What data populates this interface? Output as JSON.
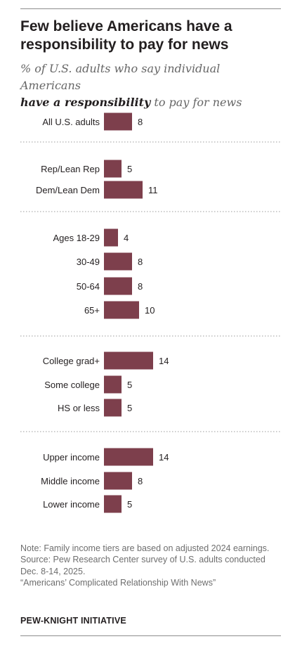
{
  "title": "Few believe Americans have a responsibility to pay for news",
  "subtitle": {
    "before": "% of U.S. adults who say individual Americans",
    "emphasis": "have a responsibility",
    "after": " to pay for news"
  },
  "chart_data": {
    "type": "bar",
    "orientation": "horizontal",
    "unit": "%",
    "bar_color": "#7d3f4c",
    "groups": [
      {
        "rows": [
          {
            "label": "All U.S. adults",
            "value": 8
          }
        ]
      },
      {
        "rows": [
          {
            "label": "Rep/Lean Rep",
            "value": 5
          },
          {
            "label": "Dem/Lean Dem",
            "value": 11
          }
        ]
      },
      {
        "rows": [
          {
            "label": "Ages 18-29",
            "value": 4
          },
          {
            "label": "30-49",
            "value": 8
          },
          {
            "label": "50-64",
            "value": 8
          },
          {
            "label": "65+",
            "value": 10
          }
        ]
      },
      {
        "rows": [
          {
            "label": "College grad+",
            "value": 14
          },
          {
            "label": "Some college",
            "value": 5
          },
          {
            "label": "HS or less",
            "value": 5
          }
        ]
      },
      {
        "rows": [
          {
            "label": "Upper income",
            "value": 14
          },
          {
            "label": "Middle income",
            "value": 8
          },
          {
            "label": "Lower income",
            "value": 5
          }
        ]
      }
    ]
  },
  "notes": [
    "Note: Family income tiers are based on adjusted 2024 earnings.",
    "Source: Pew Research Center survey of U.S. adults conducted Dec. 8-14, 2025.",
    "“Americans’ Complicated Relationship With News”"
  ],
  "brand": "PEW-KNIGHT INITIATIVE"
}
